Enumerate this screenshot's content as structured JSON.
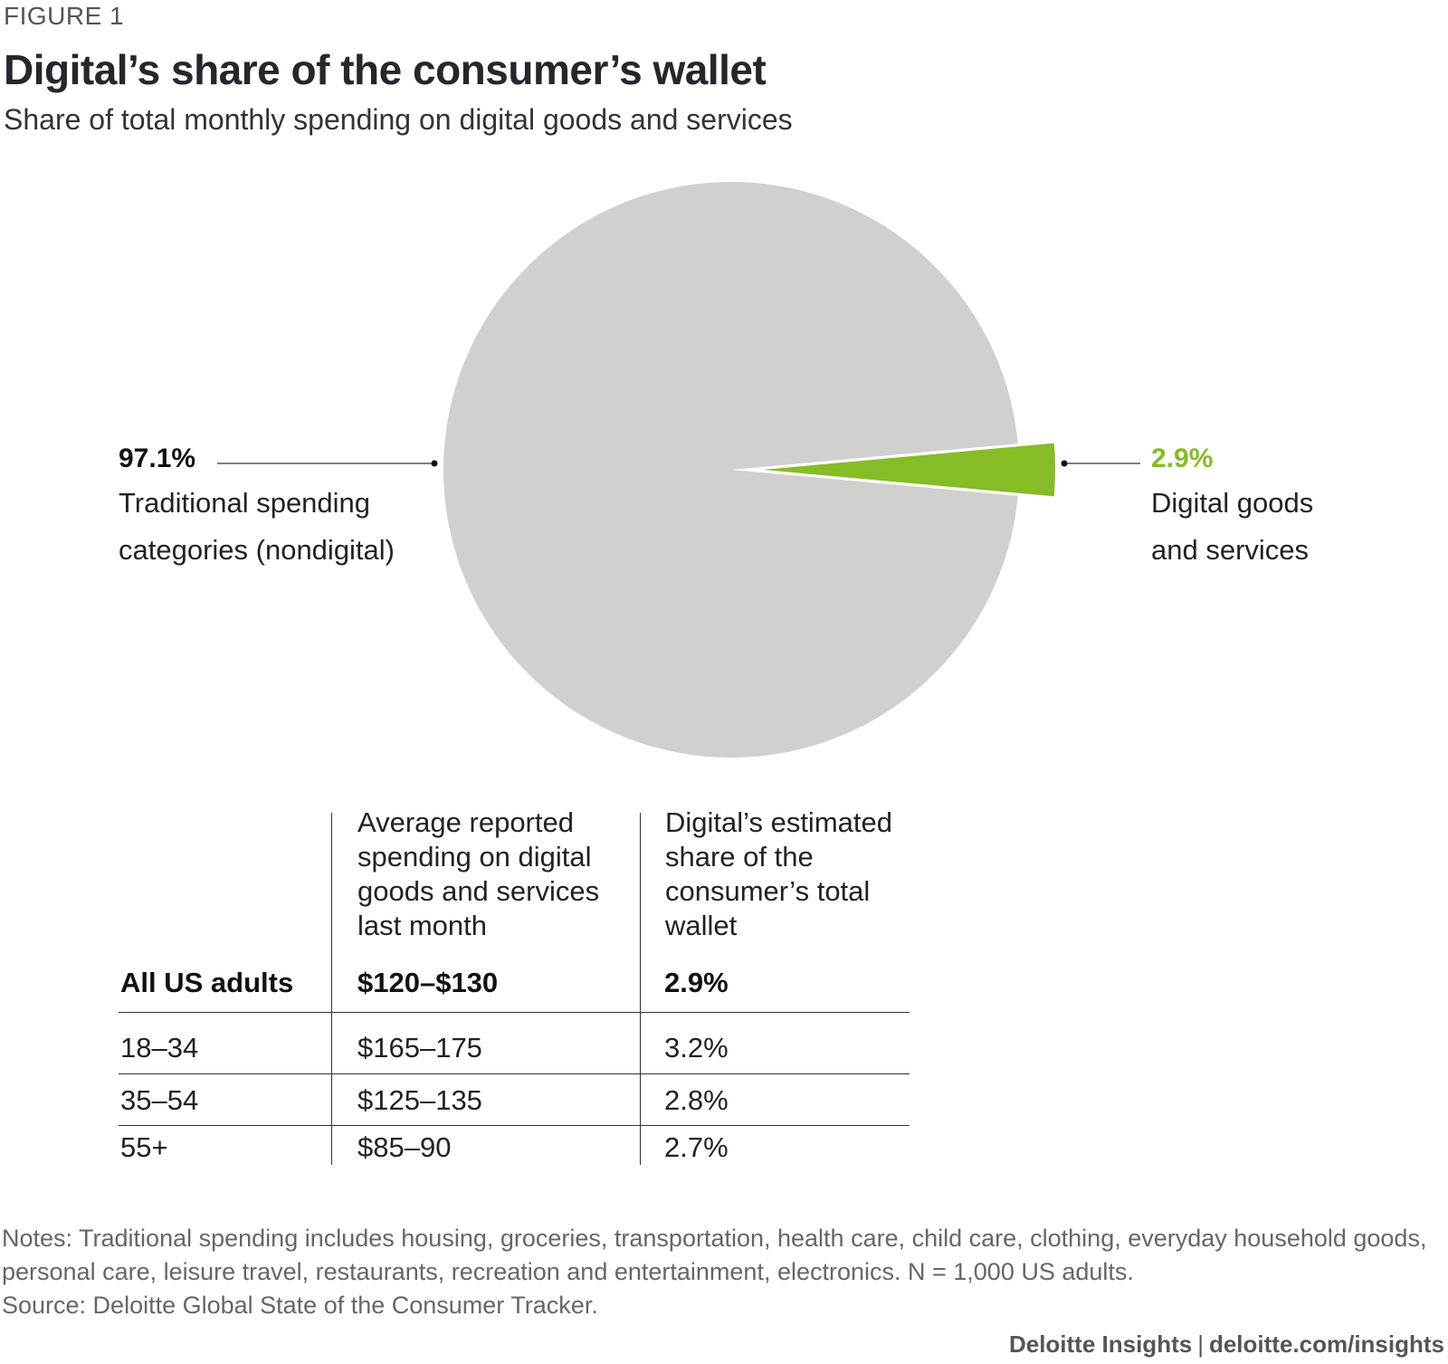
{
  "figure_label": "FIGURE 1",
  "chart_data": {
    "type": "pie",
    "title": "Digital’s share of the consumer’s wallet",
    "subtitle": "Share of total monthly spending on digital goods and services",
    "slices": [
      {
        "label": "Traditional spending categories (nondigital)",
        "value": 97.1,
        "value_label": "97.1%",
        "color": "#d0d0cf"
      },
      {
        "label": "Digital goods and services",
        "value": 2.9,
        "value_label": "2.9%",
        "color": "#86bc25"
      }
    ]
  },
  "table": {
    "headers": [
      "",
      "Average reported spending on digital goods and services last month",
      "Digital’s estimated share of the consumer’s total wallet"
    ],
    "rows": [
      [
        "All US adults",
        "$120–$130",
        "2.9%"
      ],
      [
        "18–34",
        "$165–175",
        "3.2%"
      ],
      [
        "35–54",
        "$125–135",
        "2.8%"
      ],
      [
        "55+",
        "$85–90",
        "2.7%"
      ]
    ]
  },
  "notes": "Notes: Traditional spending includes housing, groceries, transportation, health care, child care, clothing, everyday household goods, personal care, leisure travel, restaurants, recreation and entertainment, electronics. N = 1,000 US adults.",
  "source": "Source: Deloitte Global State of the Consumer Tracker.",
  "footer": {
    "brand": "Deloitte Insights",
    "separator": "|",
    "url": "deloitte.com/insights"
  }
}
